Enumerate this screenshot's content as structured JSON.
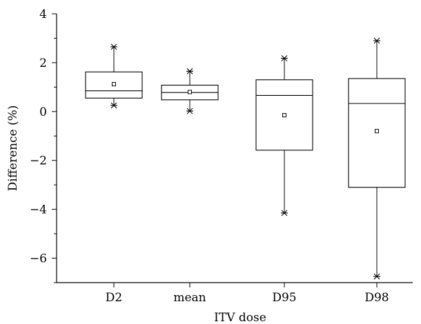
{
  "chart_data": {
    "type": "box",
    "xlabel": "ITV dose",
    "ylabel": "Difference (%)",
    "ylim": [
      -7,
      4
    ],
    "yticks_major": [
      -6,
      -4,
      -2,
      0,
      2,
      4
    ],
    "yticks_major_labels": [
      "−6",
      "−4",
      "−2",
      "0",
      "2",
      "4"
    ],
    "yticks_minor": [
      -7,
      -5,
      -3,
      -1,
      1,
      3
    ],
    "categories": [
      "D2",
      "mean",
      "D95",
      "D98"
    ],
    "boxes": [
      {
        "category": "D2",
        "min": 0.25,
        "q1": 0.55,
        "median": 0.85,
        "q3": 1.62,
        "max": 2.65,
        "mean": 1.12
      },
      {
        "category": "mean",
        "min": 0.02,
        "q1": 0.48,
        "median": 0.78,
        "q3": 1.08,
        "max": 1.65,
        "mean": 0.8
      },
      {
        "category": "D95",
        "min": -4.15,
        "q1": -1.58,
        "median": 0.66,
        "q3": 1.3,
        "max": 2.18,
        "mean": -0.15
      },
      {
        "category": "D98",
        "min": -6.75,
        "q1": -3.1,
        "median": 0.33,
        "q3": 1.35,
        "max": 2.9,
        "mean": -0.8
      }
    ],
    "grid": false,
    "legend": "none"
  }
}
